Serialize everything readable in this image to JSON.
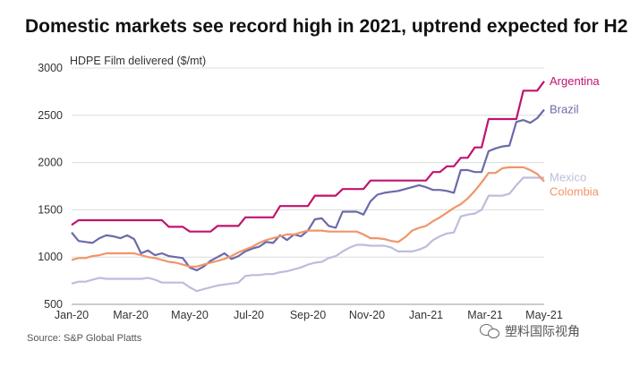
{
  "title": "Domestic markets see record high in 2021, uptrend expected for H2",
  "source": "Source: S&P Global Platts",
  "watermark": "塑料国际视角",
  "chart_data": {
    "type": "line",
    "ylabel": "HDPE Film delivered ($/mt)",
    "ylim": [
      500,
      3000
    ],
    "yticks": [
      500,
      1000,
      1500,
      2000,
      2500,
      3000
    ],
    "xlim": [
      0,
      68
    ],
    "xticks": [
      {
        "label": "Jan-20",
        "x": 0
      },
      {
        "label": "Mar-20",
        "x": 8.5
      },
      {
        "label": "May-20",
        "x": 17
      },
      {
        "label": "Jul-20",
        "x": 25.5
      },
      {
        "label": "Sep-20",
        "x": 34
      },
      {
        "label": "Nov-20",
        "x": 42.5
      },
      {
        "label": "Jan-21",
        "x": 51
      },
      {
        "label": "Mar-21",
        "x": 59.5
      },
      {
        "label": "May-21",
        "x": 68
      }
    ],
    "grid": "horizontal",
    "legend": "right-of-lines",
    "series": [
      {
        "name": "Argentina",
        "color": "#c0136f",
        "x": [
          0,
          1,
          2,
          3,
          4,
          5,
          6,
          7,
          8,
          9,
          10,
          11,
          12,
          13,
          14,
          15,
          16,
          17,
          18,
          19,
          20,
          21,
          22,
          23,
          24,
          25,
          26,
          27,
          28,
          29,
          30,
          31,
          32,
          33,
          34,
          35,
          36,
          37,
          38,
          39,
          40,
          41,
          42,
          43,
          44,
          45,
          46,
          47,
          48,
          49,
          50,
          51,
          52,
          53,
          54,
          55,
          56,
          57,
          58,
          59,
          60,
          61,
          62,
          63,
          64,
          65,
          66,
          67,
          68
        ],
        "y": [
          1340,
          1390,
          1390,
          1390,
          1390,
          1390,
          1390,
          1390,
          1390,
          1390,
          1390,
          1390,
          1390,
          1390,
          1320,
          1320,
          1320,
          1270,
          1270,
          1270,
          1270,
          1330,
          1330,
          1330,
          1330,
          1420,
          1420,
          1420,
          1420,
          1420,
          1540,
          1540,
          1540,
          1540,
          1540,
          1650,
          1650,
          1650,
          1650,
          1720,
          1720,
          1720,
          1720,
          1810,
          1810,
          1810,
          1810,
          1810,
          1810,
          1810,
          1810,
          1810,
          1900,
          1900,
          1960,
          1960,
          2050,
          2050,
          2160,
          2160,
          2460,
          2460,
          2460,
          2460,
          2460,
          2760,
          2760,
          2760,
          2860
        ]
      },
      {
        "name": "Brazil",
        "color": "#6b6aaa",
        "x": [
          0,
          1,
          2,
          3,
          4,
          5,
          6,
          7,
          8,
          9,
          10,
          11,
          12,
          13,
          14,
          15,
          16,
          17,
          18,
          19,
          20,
          21,
          22,
          23,
          24,
          25,
          26,
          27,
          28,
          29,
          30,
          31,
          32,
          33,
          34,
          35,
          36,
          37,
          38,
          39,
          40,
          41,
          42,
          43,
          44,
          45,
          46,
          47,
          48,
          49,
          50,
          51,
          52,
          53,
          54,
          55,
          56,
          57,
          58,
          59,
          60,
          61,
          62,
          63,
          64,
          65,
          66,
          67,
          68
        ],
        "y": [
          1260,
          1170,
          1160,
          1150,
          1200,
          1230,
          1220,
          1200,
          1230,
          1190,
          1040,
          1070,
          1020,
          1040,
          1010,
          1000,
          990,
          890,
          860,
          900,
          960,
          1000,
          1040,
          980,
          1010,
          1060,
          1090,
          1110,
          1160,
          1150,
          1230,
          1180,
          1240,
          1220,
          1280,
          1400,
          1410,
          1330,
          1310,
          1480,
          1480,
          1480,
          1450,
          1590,
          1660,
          1680,
          1690,
          1700,
          1720,
          1740,
          1760,
          1740,
          1710,
          1710,
          1700,
          1680,
          1920,
          1920,
          1900,
          1900,
          2120,
          2150,
          2170,
          2180,
          2430,
          2450,
          2420,
          2470,
          2560
        ]
      },
      {
        "name": "Mexico",
        "color": "#bdbcdd",
        "x": [
          0,
          1,
          2,
          3,
          4,
          5,
          6,
          7,
          8,
          9,
          10,
          11,
          12,
          13,
          14,
          15,
          16,
          17,
          18,
          19,
          20,
          21,
          22,
          23,
          24,
          25,
          26,
          27,
          28,
          29,
          30,
          31,
          32,
          33,
          34,
          35,
          36,
          37,
          38,
          39,
          40,
          41,
          42,
          43,
          44,
          45,
          46,
          47,
          48,
          49,
          50,
          51,
          52,
          53,
          54,
          55,
          56,
          57,
          58,
          59,
          60,
          61,
          62,
          63,
          64,
          65,
          66,
          67,
          68
        ],
        "y": [
          720,
          740,
          740,
          760,
          780,
          770,
          770,
          770,
          770,
          770,
          770,
          780,
          760,
          730,
          730,
          730,
          730,
          680,
          640,
          660,
          680,
          700,
          710,
          720,
          730,
          800,
          810,
          810,
          820,
          820,
          840,
          850,
          870,
          890,
          920,
          940,
          950,
          990,
          1010,
          1060,
          1100,
          1130,
          1130,
          1120,
          1120,
          1120,
          1100,
          1060,
          1060,
          1060,
          1080,
          1110,
          1180,
          1220,
          1250,
          1260,
          1430,
          1450,
          1460,
          1500,
          1650,
          1650,
          1650,
          1670,
          1760,
          1840,
          1840,
          1840,
          1840
        ]
      },
      {
        "name": "Colombia",
        "color": "#f0956a",
        "x": [
          0,
          1,
          2,
          3,
          4,
          5,
          6,
          7,
          8,
          9,
          10,
          11,
          12,
          13,
          14,
          15,
          16,
          17,
          18,
          19,
          20,
          21,
          22,
          23,
          24,
          25,
          26,
          27,
          28,
          29,
          30,
          31,
          32,
          33,
          34,
          35,
          36,
          37,
          38,
          39,
          40,
          41,
          42,
          43,
          44,
          45,
          46,
          47,
          48,
          49,
          50,
          51,
          52,
          53,
          54,
          55,
          56,
          57,
          58,
          59,
          60,
          61,
          62,
          63,
          64,
          65,
          66,
          67,
          68
        ],
        "y": [
          970,
          990,
          990,
          1010,
          1020,
          1040,
          1040,
          1040,
          1040,
          1040,
          1020,
          1000,
          990,
          970,
          950,
          940,
          920,
          900,
          900,
          920,
          940,
          960,
          980,
          1010,
          1050,
          1080,
          1110,
          1150,
          1180,
          1200,
          1220,
          1240,
          1240,
          1260,
          1280,
          1280,
          1280,
          1270,
          1270,
          1270,
          1270,
          1270,
          1240,
          1200,
          1200,
          1190,
          1170,
          1160,
          1210,
          1280,
          1310,
          1330,
          1380,
          1420,
          1470,
          1520,
          1560,
          1620,
          1700,
          1790,
          1890,
          1890,
          1940,
          1950,
          1950,
          1950,
          1920,
          1880,
          1800
        ]
      }
    ]
  }
}
